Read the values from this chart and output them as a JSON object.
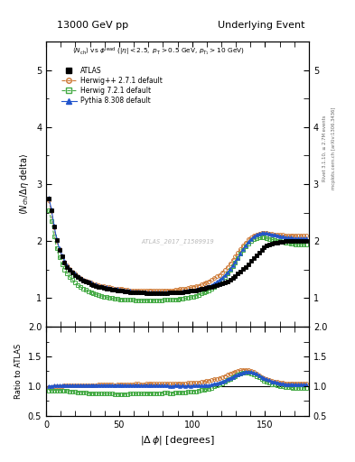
{
  "title_left": "13000 GeV pp",
  "title_right": "Underlying Event",
  "watermark": "ATLAS_2017_I1509919",
  "ylim_main": [
    0.5,
    5.5
  ],
  "ylim_ratio": [
    0.5,
    2.0
  ],
  "xlim": [
    0,
    180
  ],
  "yticks_main": [
    1,
    2,
    3,
    4,
    5
  ],
  "yticks_ratio": [
    0.5,
    1.0,
    1.5,
    2.0
  ],
  "xticks": [
    0,
    50,
    100,
    150
  ],
  "atlas_color": "#000000",
  "herwig_pp_color": "#cc7733",
  "herwig72_color": "#44aa44",
  "pythia_color": "#2255cc",
  "dphi": [
    1.8,
    3.6,
    5.4,
    7.2,
    9.0,
    10.8,
    12.6,
    14.4,
    16.2,
    18.0,
    19.8,
    21.6,
    23.4,
    25.2,
    27.0,
    28.8,
    30.6,
    32.4,
    34.2,
    36.0,
    37.8,
    39.6,
    41.4,
    43.2,
    45.0,
    46.8,
    48.6,
    50.4,
    52.2,
    54.0,
    55.8,
    57.6,
    59.4,
    61.2,
    63.0,
    64.8,
    66.6,
    68.4,
    70.2,
    72.0,
    73.8,
    75.6,
    77.4,
    79.2,
    81.0,
    82.8,
    84.6,
    86.4,
    88.2,
    90.0,
    91.8,
    93.6,
    95.4,
    97.2,
    99.0,
    100.8,
    102.6,
    104.4,
    106.2,
    108.0,
    109.8,
    111.6,
    113.4,
    115.2,
    117.0,
    118.8,
    120.6,
    122.4,
    124.2,
    126.0,
    127.8,
    129.6,
    131.4,
    133.2,
    135.0,
    136.8,
    138.6,
    140.4,
    142.2,
    144.0,
    145.8,
    147.6,
    149.4,
    151.2,
    153.0,
    154.8,
    156.6,
    158.4,
    160.2,
    162.0,
    163.8,
    165.6,
    167.4,
    169.2,
    171.0,
    172.8,
    174.6,
    176.4,
    178.2
  ],
  "atlas_y": [
    2.75,
    2.55,
    2.25,
    2.02,
    1.85,
    1.73,
    1.62,
    1.55,
    1.5,
    1.45,
    1.41,
    1.37,
    1.34,
    1.31,
    1.29,
    1.27,
    1.25,
    1.23,
    1.22,
    1.2,
    1.19,
    1.18,
    1.17,
    1.16,
    1.15,
    1.15,
    1.14,
    1.13,
    1.13,
    1.12,
    1.12,
    1.11,
    1.11,
    1.1,
    1.1,
    1.1,
    1.1,
    1.09,
    1.09,
    1.09,
    1.09,
    1.09,
    1.09,
    1.09,
    1.09,
    1.09,
    1.1,
    1.1,
    1.1,
    1.1,
    1.11,
    1.11,
    1.12,
    1.12,
    1.13,
    1.13,
    1.14,
    1.15,
    1.16,
    1.17,
    1.18,
    1.19,
    1.2,
    1.21,
    1.23,
    1.24,
    1.26,
    1.28,
    1.3,
    1.33,
    1.36,
    1.39,
    1.43,
    1.47,
    1.51,
    1.55,
    1.6,
    1.65,
    1.7,
    1.75,
    1.8,
    1.85,
    1.89,
    1.92,
    1.94,
    1.96,
    1.97,
    1.98,
    1.99,
    1.99,
    2.0,
    2.0,
    2.0,
    2.0,
    2.0,
    2.0,
    2.0,
    2.0,
    2.0
  ],
  "atlas_err": [
    0.03,
    0.03,
    0.025,
    0.022,
    0.02,
    0.018,
    0.017,
    0.016,
    0.015,
    0.015,
    0.014,
    0.013,
    0.013,
    0.012,
    0.012,
    0.012,
    0.011,
    0.011,
    0.011,
    0.01,
    0.01,
    0.01,
    0.01,
    0.01,
    0.01,
    0.01,
    0.009,
    0.009,
    0.009,
    0.009,
    0.009,
    0.009,
    0.009,
    0.009,
    0.009,
    0.009,
    0.009,
    0.009,
    0.009,
    0.009,
    0.009,
    0.009,
    0.009,
    0.009,
    0.009,
    0.009,
    0.009,
    0.009,
    0.009,
    0.009,
    0.009,
    0.009,
    0.009,
    0.009,
    0.009,
    0.009,
    0.009,
    0.009,
    0.009,
    0.01,
    0.01,
    0.01,
    0.01,
    0.01,
    0.01,
    0.01,
    0.01,
    0.011,
    0.011,
    0.011,
    0.012,
    0.012,
    0.013,
    0.013,
    0.014,
    0.014,
    0.015,
    0.016,
    0.017,
    0.017,
    0.018,
    0.018,
    0.019,
    0.019,
    0.019,
    0.019,
    0.019,
    0.019,
    0.019,
    0.019,
    0.019,
    0.019,
    0.019,
    0.019,
    0.019,
    0.019,
    0.019,
    0.019,
    0.019
  ],
  "herwig_pp_y": [
    2.72,
    2.52,
    2.24,
    2.01,
    1.86,
    1.74,
    1.64,
    1.57,
    1.52,
    1.47,
    1.43,
    1.39,
    1.36,
    1.33,
    1.31,
    1.29,
    1.27,
    1.25,
    1.24,
    1.23,
    1.22,
    1.21,
    1.2,
    1.19,
    1.18,
    1.17,
    1.17,
    1.16,
    1.16,
    1.15,
    1.15,
    1.14,
    1.14,
    1.14,
    1.14,
    1.13,
    1.13,
    1.13,
    1.13,
    1.13,
    1.13,
    1.13,
    1.13,
    1.13,
    1.14,
    1.14,
    1.14,
    1.14,
    1.15,
    1.15,
    1.16,
    1.16,
    1.17,
    1.18,
    1.19,
    1.2,
    1.21,
    1.22,
    1.24,
    1.26,
    1.28,
    1.3,
    1.32,
    1.35,
    1.38,
    1.41,
    1.45,
    1.5,
    1.55,
    1.61,
    1.67,
    1.73,
    1.8,
    1.86,
    1.93,
    1.98,
    2.03,
    2.07,
    2.1,
    2.12,
    2.13,
    2.14,
    2.14,
    2.14,
    2.13,
    2.13,
    2.12,
    2.12,
    2.11,
    2.11,
    2.1,
    2.1,
    2.1,
    2.1,
    2.1,
    2.1,
    2.1,
    2.1,
    2.1
  ],
  "herwig72_y": [
    2.55,
    2.36,
    2.09,
    1.87,
    1.72,
    1.6,
    1.5,
    1.43,
    1.37,
    1.32,
    1.27,
    1.23,
    1.2,
    1.17,
    1.15,
    1.12,
    1.1,
    1.08,
    1.07,
    1.05,
    1.04,
    1.03,
    1.02,
    1.01,
    1.0,
    0.99,
    0.99,
    0.98,
    0.98,
    0.97,
    0.97,
    0.97,
    0.97,
    0.96,
    0.96,
    0.96,
    0.96,
    0.96,
    0.96,
    0.96,
    0.96,
    0.96,
    0.96,
    0.96,
    0.97,
    0.97,
    0.97,
    0.97,
    0.98,
    0.98,
    0.99,
    0.99,
    1.0,
    1.01,
    1.02,
    1.03,
    1.04,
    1.06,
    1.08,
    1.1,
    1.12,
    1.14,
    1.17,
    1.2,
    1.24,
    1.28,
    1.32,
    1.37,
    1.43,
    1.49,
    1.56,
    1.63,
    1.71,
    1.78,
    1.85,
    1.91,
    1.96,
    2.0,
    2.03,
    2.05,
    2.06,
    2.06,
    2.06,
    2.05,
    2.04,
    2.03,
    2.02,
    2.01,
    2.0,
    1.99,
    1.98,
    1.97,
    1.96,
    1.95,
    1.94,
    1.94,
    1.94,
    1.94,
    1.94
  ],
  "pythia_y": [
    2.76,
    2.56,
    2.27,
    2.04,
    1.87,
    1.75,
    1.65,
    1.57,
    1.52,
    1.47,
    1.43,
    1.39,
    1.36,
    1.33,
    1.31,
    1.29,
    1.27,
    1.25,
    1.24,
    1.22,
    1.21,
    1.2,
    1.19,
    1.18,
    1.17,
    1.16,
    1.16,
    1.15,
    1.14,
    1.14,
    1.13,
    1.13,
    1.12,
    1.12,
    1.12,
    1.11,
    1.11,
    1.11,
    1.1,
    1.1,
    1.1,
    1.1,
    1.1,
    1.1,
    1.1,
    1.1,
    1.1,
    1.1,
    1.11,
    1.11,
    1.11,
    1.12,
    1.12,
    1.13,
    1.13,
    1.14,
    1.15,
    1.16,
    1.17,
    1.18,
    1.2,
    1.21,
    1.23,
    1.26,
    1.29,
    1.32,
    1.36,
    1.4,
    1.45,
    1.51,
    1.57,
    1.64,
    1.71,
    1.79,
    1.86,
    1.93,
    1.99,
    2.04,
    2.08,
    2.11,
    2.13,
    2.14,
    2.14,
    2.14,
    2.13,
    2.12,
    2.11,
    2.1,
    2.09,
    2.08,
    2.07,
    2.06,
    2.06,
    2.05,
    2.05,
    2.05,
    2.05,
    2.05,
    2.05
  ],
  "legend_entries": [
    "ATLAS",
    "Herwig++ 2.7.1 default",
    "Herwig 7.2.1 default",
    "Pythia 8.308 default"
  ],
  "right_label1": "Rivet 3.1.10, ≥ 2.7M events",
  "right_label2": "mcplots.cern.ch [arXiv:1306.3436]"
}
